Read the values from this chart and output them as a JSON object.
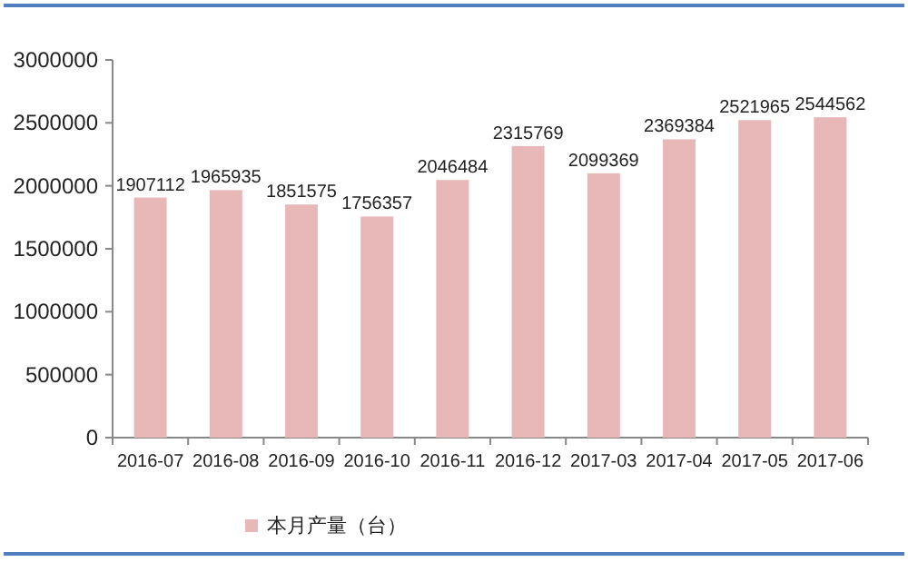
{
  "chart_data": {
    "type": "bar",
    "categories": [
      "2016-07",
      "2016-08",
      "2016-09",
      "2016-10",
      "2016-11",
      "2016-12",
      "2017-03",
      "2017-04",
      "2017-05",
      "2017-06"
    ],
    "series": [
      {
        "name": "本月产量（台）",
        "color": "#e8b7b7",
        "values": [
          1907112,
          1965935,
          1851575,
          1756357,
          2046484,
          2315769,
          2099369,
          2369384,
          2521965,
          2544562
        ]
      }
    ],
    "ylim": [
      0,
      3000000
    ],
    "yticks": [
      0,
      500000,
      1000000,
      1500000,
      2000000,
      2500000,
      3000000
    ],
    "data_labels": true,
    "legend": "bottom",
    "grid": false
  }
}
